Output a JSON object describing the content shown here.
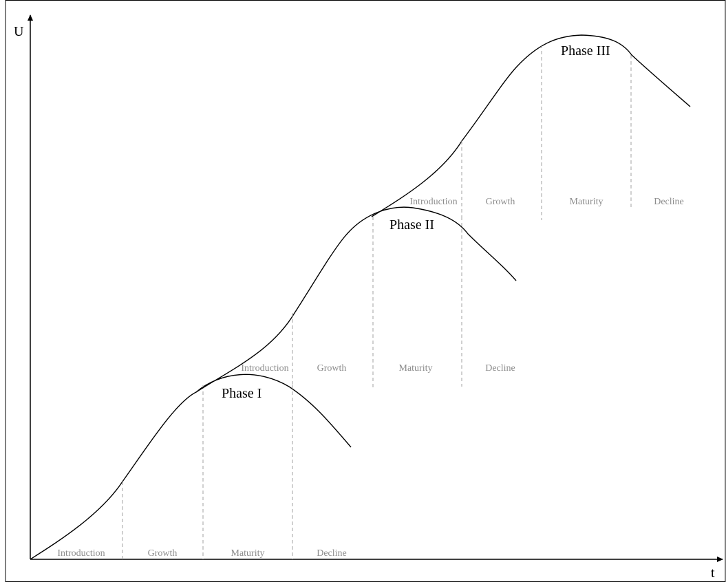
{
  "axes": {
    "y_label": "U",
    "x_label": "t"
  },
  "stages": [
    "Introduction",
    "Growth",
    "Maturity",
    "Decline"
  ],
  "phases": [
    {
      "label": "Phase I",
      "stages": [
        "Introduction",
        "Growth",
        "Maturity",
        "Decline"
      ]
    },
    {
      "label": "Phase II",
      "stages": [
        "Introduction",
        "Growth",
        "Maturity",
        "Decline"
      ]
    },
    {
      "label": "Phase III",
      "stages": [
        "Introduction",
        "Growth",
        "Maturity",
        "Decline"
      ]
    }
  ],
  "colors": {
    "curve": "#000000",
    "stage_text": "#8c8c8c",
    "divider": "#a0a0a0"
  }
}
